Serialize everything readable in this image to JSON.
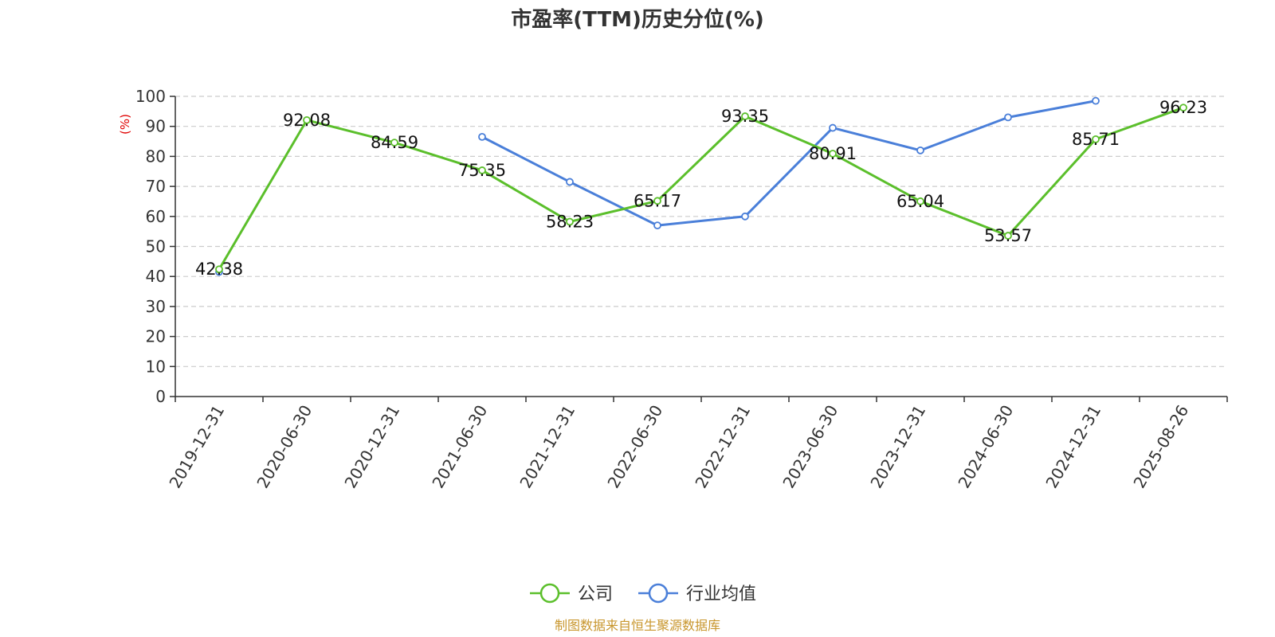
{
  "chart_data": {
    "type": "line",
    "title": "市盈率(TTM)历史分位(%)",
    "ylabel": "(%)",
    "xlabel": "",
    "ylim": [
      0,
      100
    ],
    "yticks": [
      0,
      10,
      20,
      30,
      40,
      50,
      60,
      70,
      80,
      90,
      100
    ],
    "categories": [
      "2019-12-31",
      "2020-06-30",
      "2020-12-31",
      "2021-06-30",
      "2021-12-31",
      "2022-06-30",
      "2022-12-31",
      "2023-06-30",
      "2023-12-31",
      "2024-06-30",
      "2024-12-31",
      "2025-08-26"
    ],
    "grid": true,
    "legend_position": "bottom",
    "series": [
      {
        "name": "公司",
        "color": "#5bbf2b",
        "values": [
          42.38,
          92.08,
          84.59,
          75.35,
          58.23,
          65.17,
          93.35,
          80.91,
          65.04,
          53.57,
          85.71,
          96.23
        ],
        "labels": [
          "42.38",
          "92.08",
          "84.59",
          "75.35",
          "58.23",
          "65.17",
          "93.35",
          "80.91",
          "65.04",
          "53.57",
          "85.71",
          "96.23"
        ]
      },
      {
        "name": "行业均值",
        "color": "#4a7fd9",
        "values": [
          41.5,
          null,
          null,
          86.5,
          71.5,
          57.0,
          60.0,
          89.5,
          82.0,
          93.0,
          98.5,
          null
        ],
        "labels": []
      }
    ]
  },
  "source_text": "制图数据来自恒生聚源数据库",
  "colors": {
    "ylabel": "#e00000",
    "source": "#c8962d",
    "axis": "#333333",
    "grid": "#cccccc"
  }
}
